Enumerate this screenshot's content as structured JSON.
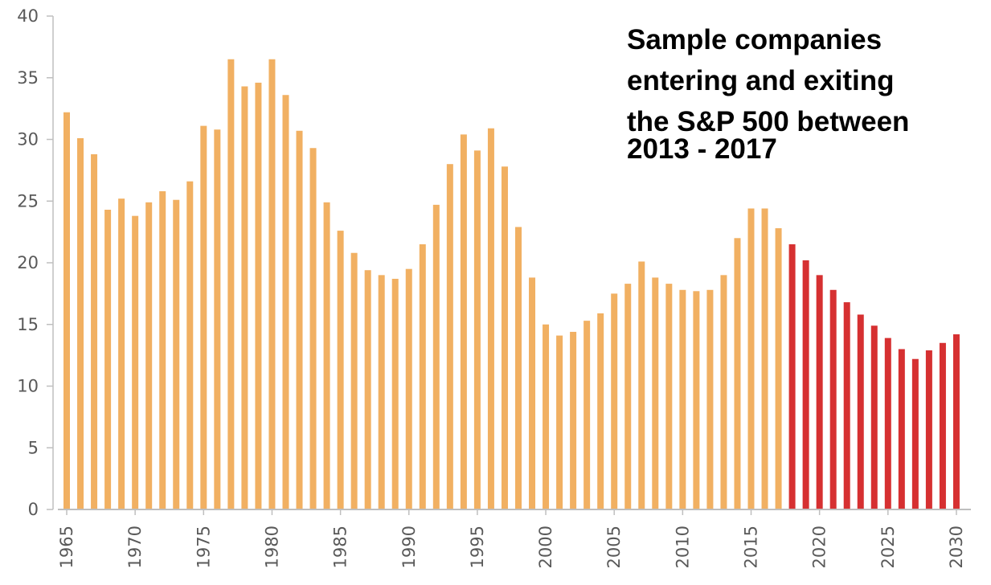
{
  "chart_data": {
    "type": "bar",
    "title_lines": [
      "Sample companies",
      "entering and exiting",
      "the S&P 500 between",
      "2013 - 2017"
    ],
    "xlabel": "",
    "ylabel": "",
    "ylim": [
      0,
      40
    ],
    "y_ticks": [
      "0",
      "5",
      "10",
      "15",
      "20",
      "25",
      "30",
      "35",
      "40"
    ],
    "x_tick_labels": [
      "1965",
      "1970",
      "1975",
      "1980",
      "1985",
      "1990",
      "1995",
      "2000",
      "2005",
      "2010",
      "2015",
      "2020",
      "2025",
      "2030"
    ],
    "grid": false,
    "legend": "none",
    "colors": {
      "historical": "#f1b062",
      "forecast": "#d63031",
      "axis": "#bfbfbf",
      "tick_text": "#595959"
    },
    "forecast_start_year": 2018,
    "years": [
      1965,
      1966,
      1967,
      1968,
      1969,
      1970,
      1971,
      1972,
      1973,
      1974,
      1975,
      1976,
      1977,
      1978,
      1979,
      1980,
      1981,
      1982,
      1983,
      1984,
      1985,
      1986,
      1987,
      1988,
      1989,
      1990,
      1991,
      1992,
      1993,
      1994,
      1995,
      1996,
      1997,
      1998,
      1999,
      2000,
      2001,
      2002,
      2003,
      2004,
      2005,
      2006,
      2007,
      2008,
      2009,
      2010,
      2011,
      2012,
      2013,
      2014,
      2015,
      2016,
      2017,
      2018,
      2019,
      2020,
      2021,
      2022,
      2023,
      2024,
      2025,
      2026,
      2027,
      2028,
      2029,
      2030
    ],
    "values": [
      32.2,
      30.1,
      28.8,
      24.3,
      25.2,
      23.8,
      24.9,
      25.8,
      25.1,
      26.6,
      31.1,
      30.8,
      36.5,
      34.3,
      34.6,
      36.5,
      33.6,
      30.7,
      29.3,
      24.9,
      22.6,
      20.8,
      19.4,
      19.0,
      18.7,
      19.5,
      21.5,
      24.7,
      28.0,
      30.4,
      29.1,
      30.9,
      27.8,
      22.9,
      18.8,
      15.0,
      14.1,
      14.4,
      15.3,
      15.9,
      17.5,
      18.3,
      20.1,
      18.8,
      18.3,
      17.8,
      17.7,
      17.8,
      19.0,
      22.0,
      24.4,
      24.4,
      22.8,
      21.5,
      20.2,
      19.0,
      17.8,
      16.8,
      15.8,
      14.9,
      13.9,
      13.0,
      12.2,
      12.9,
      13.5,
      14.2
    ]
  }
}
